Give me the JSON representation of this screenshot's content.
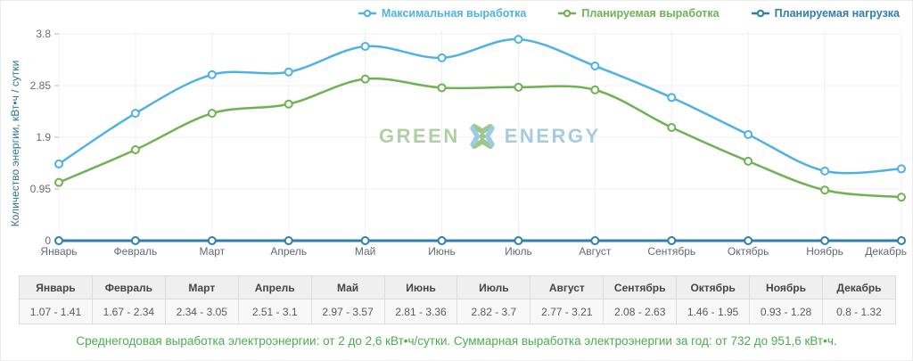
{
  "legend": {
    "items": [
      {
        "id": "max",
        "label": "Максимальная выработка",
        "color": "#4fb2e6"
      },
      {
        "id": "plan",
        "label": "Планируемая выработка",
        "color": "#6fb253"
      },
      {
        "id": "load",
        "label": "Планируемая нагрузка",
        "color": "#2e7fae"
      }
    ]
  },
  "chart_data": {
    "type": "line",
    "categories": [
      "Январь",
      "Февраль",
      "Март",
      "Апрель",
      "Май",
      "Июнь",
      "Июль",
      "Август",
      "Сентябрь",
      "Октябрь",
      "Ноябрь",
      "Декабрь"
    ],
    "series": [
      {
        "name": "Максимальная выработка",
        "color": "#4fb2e6",
        "line_width": 2.5,
        "values": [
          1.41,
          2.34,
          3.05,
          3.1,
          3.57,
          3.36,
          3.7,
          3.21,
          2.63,
          1.95,
          1.28,
          1.32
        ]
      },
      {
        "name": "Планируемая выработка",
        "color": "#6fb253",
        "line_width": 2.5,
        "values": [
          1.07,
          1.67,
          2.34,
          2.51,
          2.97,
          2.81,
          2.82,
          2.77,
          2.08,
          1.46,
          0.93,
          0.8
        ]
      },
      {
        "name": "Планируемая нагрузка",
        "color": "#2e7fae",
        "line_width": 3,
        "values": [
          0,
          0,
          0,
          0,
          0,
          0,
          0,
          0,
          0,
          0,
          0,
          0
        ]
      }
    ],
    "title": "",
    "xlabel": "",
    "ylabel": "Количество энергии, кВт•ч / сутки",
    "ylim": [
      0,
      3.8
    ],
    "yticks": [
      "0",
      "0.95",
      "1.9",
      "2.85",
      "3.8"
    ],
    "ytick_values": [
      0,
      0.95,
      1.9,
      2.85,
      3.8
    ],
    "grid": true,
    "grid_color": "#f0f0f0",
    "legend_position": "top-right",
    "marker": {
      "radius": 4,
      "fill": "#ffffff",
      "stroke_width": 2
    }
  },
  "watermark": {
    "left": "GREEN",
    "right": "ENERGY"
  },
  "table": {
    "headers": [
      "Январь",
      "Февраль",
      "Март",
      "Апрель",
      "Май",
      "Июнь",
      "Июль",
      "Август",
      "Сентябрь",
      "Октябрь",
      "Ноябрь",
      "Декабрь"
    ],
    "values": [
      "1.07 - 1.41",
      "1.67 - 2.34",
      "2.34 - 3.05",
      "2.51 - 3.1",
      "2.97 - 3.57",
      "2.81 - 3.36",
      "2.82 - 3.7",
      "2.77 - 3.21",
      "2.08 - 2.63",
      "1.46 - 1.95",
      "0.93 - 1.28",
      "0.8 - 1.32"
    ]
  },
  "summary": "Среднегодовая выработка электроэнергии: от 2 до 2,6 кВт•ч/сутки. Суммарная выработка электроэнергии за год: от 732 до 951,6 кВт•ч."
}
